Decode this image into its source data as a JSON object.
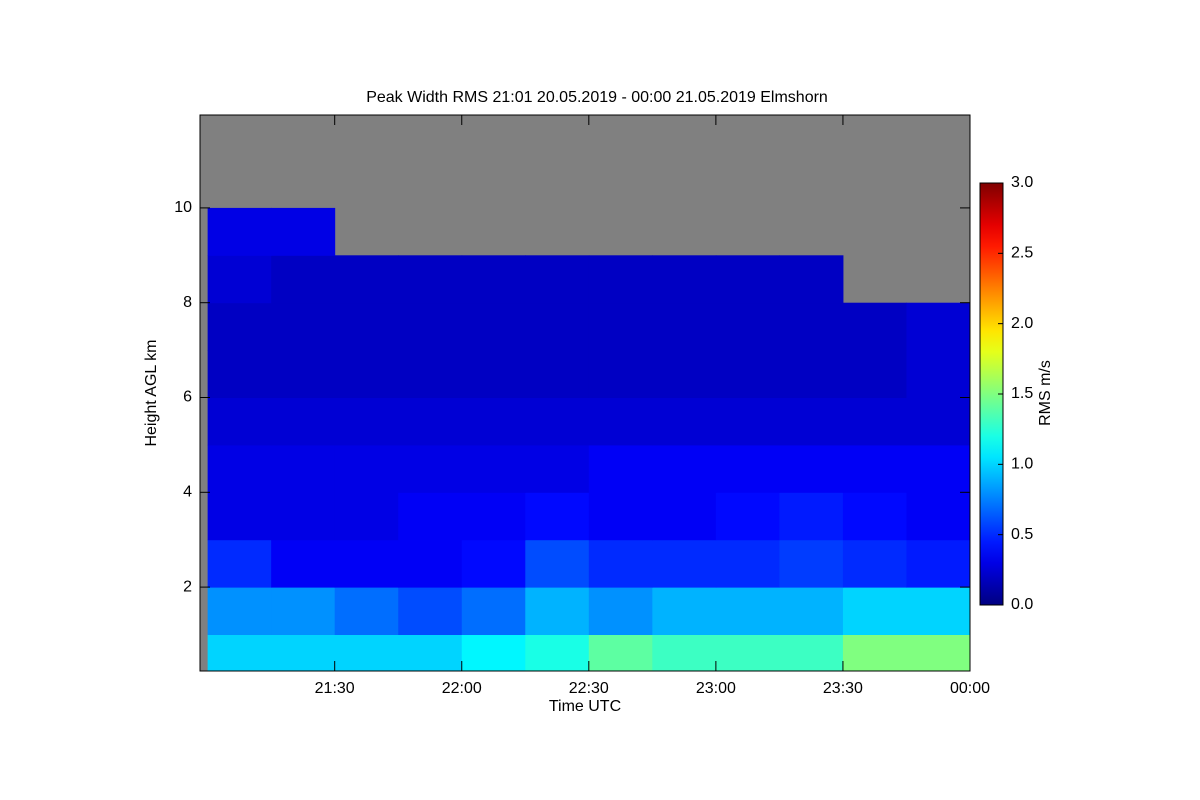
{
  "chart_data": {
    "type": "heatmap",
    "title": "Peak Width RMS   21:01 20.05.2019 - 00:00 21.05.2019 Elmshorn",
    "x_label": "Time UTC",
    "y_label": "Height AGL km",
    "colorbar_label": "RMS m/s",
    "colormap": "jet",
    "missing_color": "#808080",
    "x": [
      21.125,
      21.375,
      21.625,
      21.875,
      22.125,
      22.375,
      22.625,
      22.875,
      23.125,
      23.375,
      23.625,
      23.875
    ],
    "y": [
      0.5,
      1.5,
      2.5,
      3.5,
      4.5,
      5.5,
      6.5,
      7.5,
      8.5,
      9.5,
      10.5,
      11.5
    ],
    "z": [
      [
        1.0,
        1.0,
        1.0,
        1.0,
        1.1,
        1.2,
        1.4,
        1.3,
        1.3,
        1.3,
        1.5,
        1.5
      ],
      [
        0.8,
        0.8,
        0.7,
        0.6,
        0.7,
        0.9,
        0.8,
        0.9,
        0.9,
        0.9,
        1.0,
        1.0
      ],
      [
        0.5,
        0.35,
        0.35,
        0.35,
        0.4,
        0.6,
        0.5,
        0.5,
        0.5,
        0.55,
        0.5,
        0.45
      ],
      [
        0.3,
        0.3,
        0.3,
        0.35,
        0.35,
        0.4,
        0.35,
        0.35,
        0.4,
        0.45,
        0.4,
        0.35
      ],
      [
        0.3,
        0.3,
        0.3,
        0.3,
        0.3,
        0.3,
        0.35,
        0.35,
        0.35,
        0.35,
        0.35,
        0.35
      ],
      [
        0.25,
        0.25,
        0.25,
        0.25,
        0.25,
        0.25,
        0.25,
        0.25,
        0.25,
        0.25,
        0.25,
        0.25
      ],
      [
        0.2,
        0.2,
        0.2,
        0.2,
        0.2,
        0.2,
        0.2,
        0.2,
        0.2,
        0.2,
        0.2,
        0.25
      ],
      [
        0.2,
        0.2,
        0.2,
        0.2,
        0.2,
        0.2,
        0.2,
        0.2,
        0.2,
        0.2,
        0.2,
        0.25
      ],
      [
        0.25,
        0.2,
        0.2,
        0.2,
        0.2,
        0.2,
        0.2,
        0.2,
        0.2,
        0.2,
        null,
        null
      ],
      [
        0.3,
        0.3,
        null,
        null,
        null,
        null,
        null,
        null,
        null,
        null,
        null,
        null
      ],
      [
        null,
        null,
        null,
        null,
        null,
        null,
        null,
        null,
        null,
        null,
        null,
        null
      ],
      [
        null,
        null,
        null,
        null,
        null,
        null,
        null,
        null,
        null,
        null,
        null,
        null
      ]
    ],
    "xlim": [
      20.97,
      24
    ],
    "xticks": [
      {
        "value": 21.5,
        "label": "21:30"
      },
      {
        "value": 22,
        "label": "22:00"
      },
      {
        "value": 22.5,
        "label": "22:30"
      },
      {
        "value": 23,
        "label": "23:00"
      },
      {
        "value": 23.5,
        "label": "23:30"
      },
      {
        "value": 24,
        "label": "00:00"
      }
    ],
    "ylim": [
      0.23,
      11.96
    ],
    "yticks": [
      2,
      4,
      6,
      8,
      10
    ],
    "zlim": [
      0,
      3
    ],
    "zticks": [
      {
        "value": 0,
        "label": "0.0"
      },
      {
        "value": 0.5,
        "label": "0.5"
      },
      {
        "value": 1,
        "label": "1.0"
      },
      {
        "value": 1.5,
        "label": "1.5"
      },
      {
        "value": 2,
        "label": "2.0"
      },
      {
        "value": 2.5,
        "label": "2.5"
      },
      {
        "value": 3,
        "label": "3.0"
      }
    ]
  }
}
